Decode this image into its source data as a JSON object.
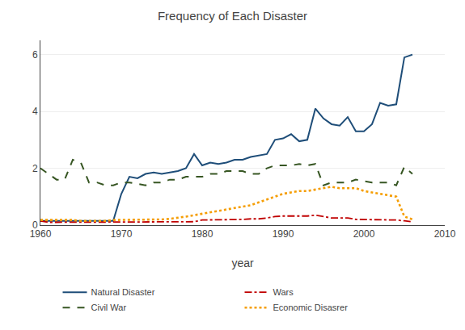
{
  "chart_data": {
    "type": "line",
    "title": "Frequency of Each Disaster",
    "xlabel": "year",
    "x": [
      1960,
      1961,
      1962,
      1963,
      1964,
      1965,
      1966,
      1967,
      1968,
      1969,
      1970,
      1971,
      1972,
      1973,
      1974,
      1975,
      1976,
      1977,
      1978,
      1979,
      1980,
      1981,
      1982,
      1983,
      1984,
      1985,
      1986,
      1987,
      1988,
      1989,
      1990,
      1991,
      1992,
      1993,
      1994,
      1995,
      1996,
      1997,
      1998,
      1999,
      2000,
      2001,
      2002,
      2003,
      2004,
      2005,
      2006
    ],
    "series": [
      {
        "name": "Natural Disaster",
        "color": "#1f4e79",
        "line_style": "solid",
        "values": [
          0.15,
          0.15,
          0.15,
          0.15,
          0.15,
          0.15,
          0.15,
          0.15,
          0.15,
          0.15,
          1.1,
          1.7,
          1.65,
          1.8,
          1.85,
          1.8,
          1.85,
          1.9,
          2.0,
          2.5,
          2.1,
          2.2,
          2.15,
          2.2,
          2.3,
          2.3,
          2.4,
          2.45,
          2.5,
          3.0,
          3.05,
          3.2,
          2.95,
          3.0,
          4.1,
          3.75,
          3.55,
          3.5,
          3.8,
          3.3,
          3.3,
          3.55,
          4.3,
          4.2,
          4.25,
          5.9,
          6.0
        ]
      },
      {
        "name": "Wars",
        "color": "#c00000",
        "line_style": "dashdot",
        "values": [
          0.15,
          0.1,
          0.1,
          0.1,
          0.12,
          0.12,
          0.12,
          0.12,
          0.12,
          0.12,
          0.12,
          0.12,
          0.12,
          0.12,
          0.12,
          0.12,
          0.12,
          0.12,
          0.12,
          0.12,
          0.18,
          0.18,
          0.2,
          0.2,
          0.2,
          0.2,
          0.22,
          0.22,
          0.25,
          0.3,
          0.32,
          0.32,
          0.32,
          0.32,
          0.35,
          0.3,
          0.25,
          0.25,
          0.25,
          0.2,
          0.2,
          0.18,
          0.18,
          0.18,
          0.18,
          0.15,
          0.12
        ]
      },
      {
        "name": "Civil War",
        "color": "#375623",
        "line_style": "dashed",
        "values": [
          2.0,
          1.8,
          1.6,
          1.6,
          2.3,
          2.2,
          1.5,
          1.5,
          1.4,
          1.4,
          1.5,
          1.5,
          1.45,
          1.4,
          1.5,
          1.5,
          1.6,
          1.6,
          1.7,
          1.7,
          1.7,
          1.8,
          1.8,
          1.9,
          1.9,
          1.9,
          1.8,
          1.8,
          2.0,
          2.1,
          2.1,
          2.1,
          2.15,
          2.1,
          2.15,
          1.4,
          1.5,
          1.5,
          1.5,
          1.6,
          1.55,
          1.5,
          1.5,
          1.5,
          1.4,
          2.05,
          1.8
        ]
      },
      {
        "name": "Economic Disasrer",
        "color": "#f59d00",
        "line_style": "dotted",
        "values": [
          0.18,
          0.18,
          0.18,
          0.18,
          0.18,
          0.15,
          0.15,
          0.15,
          0.15,
          0.18,
          0.18,
          0.18,
          0.2,
          0.2,
          0.2,
          0.2,
          0.22,
          0.25,
          0.3,
          0.35,
          0.4,
          0.45,
          0.5,
          0.55,
          0.6,
          0.65,
          0.7,
          0.8,
          0.9,
          1.0,
          1.1,
          1.15,
          1.2,
          1.2,
          1.25,
          1.3,
          1.35,
          1.3,
          1.3,
          1.3,
          1.2,
          1.15,
          1.1,
          1.05,
          1.0,
          0.3,
          0.2
        ]
      }
    ],
    "xlim": [
      1960,
      2010
    ],
    "xticks": [
      1960,
      1970,
      1980,
      1990,
      2000,
      2010
    ],
    "ylim": [
      0,
      6.5
    ],
    "yticks": [
      0,
      2,
      4,
      6
    ],
    "grid": true,
    "legend": "bottom"
  }
}
